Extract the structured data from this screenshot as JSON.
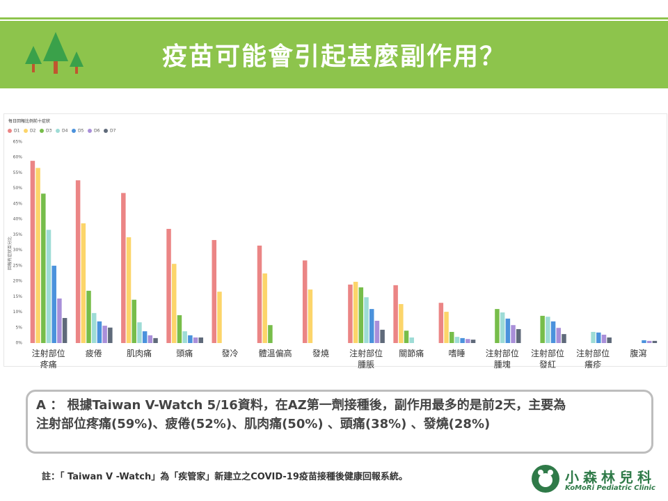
{
  "header": {
    "title": "疫苗可能會引起甚麼副作用？"
  },
  "chart_data": {
    "type": "bar",
    "legend_title": "每日回報比例前十症狀",
    "y_label": "回報有症狀百分比",
    "categories": [
      "注射部位\n疼痛",
      "疲倦",
      "肌肉痛",
      "頭痛",
      "發冷",
      "體溫偏高",
      "發燒",
      "注射部位\n腫脹",
      "關節痛",
      "嗜睡",
      "注射部位\n腫塊",
      "注射部位\n發紅",
      "注射部位\n癢疹",
      "腹瀉"
    ],
    "series": [
      {
        "name": "D1",
        "color": "#eb8585",
        "values": [
          58.9,
          52.6,
          48.5,
          36.9,
          33.3,
          31.5,
          26.7,
          18.9,
          18.7,
          13,
          null,
          null,
          null,
          null
        ]
      },
      {
        "name": "D2",
        "color": "#fcd56a",
        "values": [
          56.6,
          38.7,
          34.2,
          25.6,
          16.6,
          22.5,
          17.3,
          19.8,
          12.6,
          10.1,
          null,
          null,
          null,
          null
        ]
      },
      {
        "name": "D3",
        "color": "#77bd4a",
        "values": [
          48.3,
          16.9,
          14,
          9,
          null,
          5.8,
          null,
          18,
          4,
          3.6,
          11,
          8.8,
          null,
          null
        ]
      },
      {
        "name": "D4",
        "color": "#9edcd6",
        "values": [
          36.6,
          9.7,
          6.7,
          3.8,
          null,
          null,
          null,
          14.8,
          1.8,
          2,
          9.9,
          8.5,
          3.6,
          null
        ]
      },
      {
        "name": "D5",
        "color": "#4b92dc",
        "values": [
          25,
          7,
          3.8,
          2.5,
          null,
          null,
          null,
          11,
          null,
          1.6,
          7.9,
          7,
          3.4,
          0.9
        ]
      },
      {
        "name": "D6",
        "color": "#a98fd9",
        "values": [
          14.4,
          5.6,
          2.5,
          1.8,
          null,
          null,
          null,
          7.2,
          null,
          1.3,
          5.8,
          4.9,
          2.7,
          0.7
        ]
      },
      {
        "name": "D7",
        "color": "#5f6a7a",
        "values": [
          8.1,
          5,
          1.6,
          1.8,
          null,
          null,
          null,
          4.3,
          null,
          1.1,
          4.5,
          2.9,
          1.8,
          0.7
        ]
      }
    ],
    "ylim": [
      0,
      65
    ],
    "yticks": [
      {
        "value": 0,
        "label": "0%"
      },
      {
        "value": 5,
        "label": "5%"
      },
      {
        "value": 10,
        "label": "10%"
      },
      {
        "value": 15,
        "label": "15%"
      },
      {
        "value": 20,
        "label": "20%"
      },
      {
        "value": 25,
        "label": "25%"
      },
      {
        "value": 30,
        "label": "30%"
      },
      {
        "value": 35,
        "label": "35%"
      },
      {
        "value": 40,
        "label": "40%"
      },
      {
        "value": 45,
        "label": "45%"
      },
      {
        "value": 50,
        "label": "50%"
      },
      {
        "value": 55,
        "label": "55%"
      },
      {
        "value": 60,
        "label": "60%"
      },
      {
        "value": 65,
        "label": "65%"
      }
    ],
    "grid": false
  },
  "answer": {
    "lines": [
      "A ： 根據Taiwan V-Watch 5/16資料，在AZ第一劑接種後，副作用最多的是前2天，主要為",
      "注射部位疼痛(59%)、疲倦(52%)、肌肉痛(50%) 、頭痛(38%) 、發燒(28%)"
    ]
  },
  "note": "註：「 Taiwan V -Watch」為「疾管家」新建立之COVID-19疫苗接種後健康回報系統。",
  "logo": {
    "name": "小森林兒科",
    "subtitle": "KoMoRi Pediatric Clinic"
  }
}
